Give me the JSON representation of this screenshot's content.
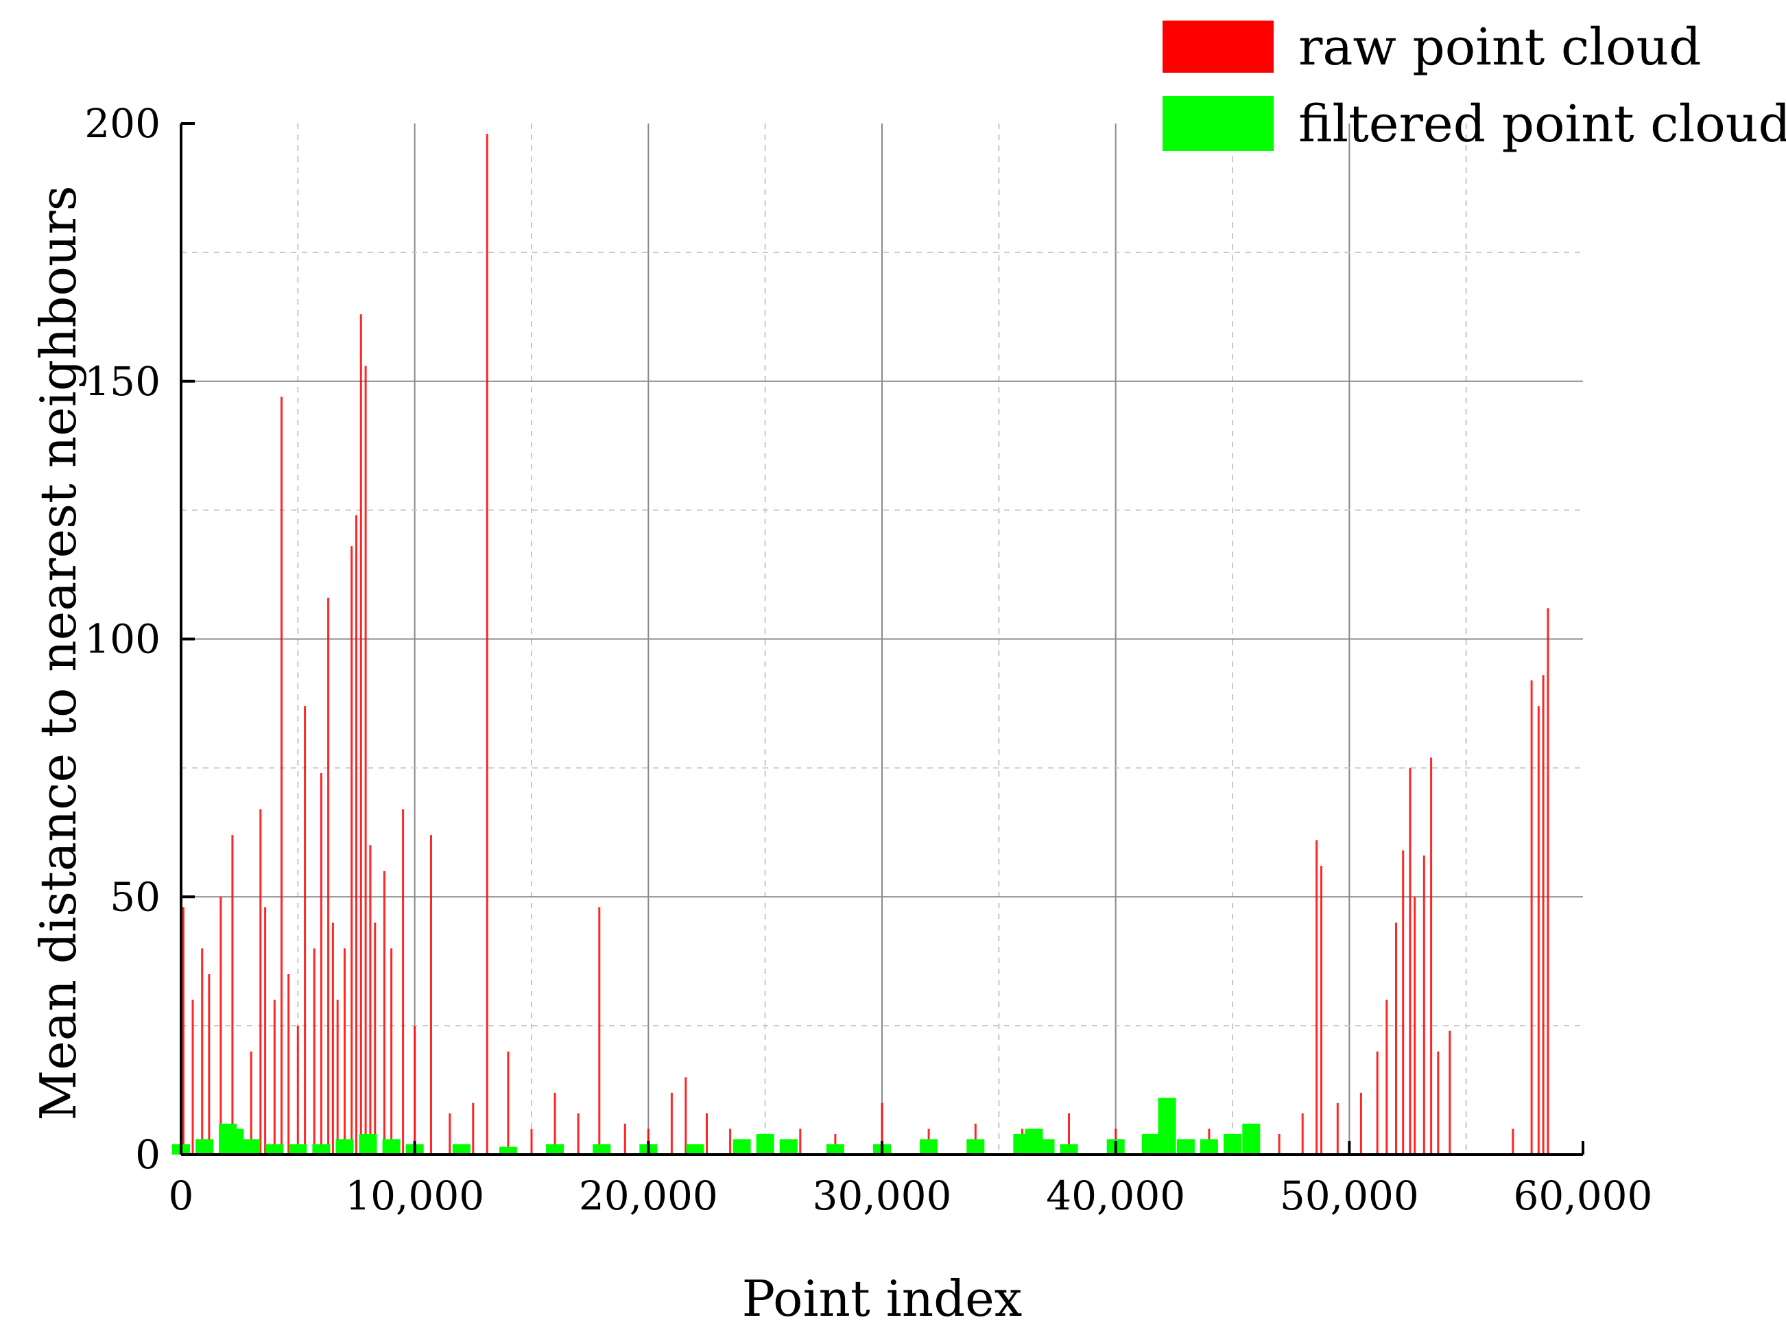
{
  "chart_data": {
    "type": "bar",
    "xlabel": "Point index",
    "ylabel": "Mean distance to nearest neighbours",
    "xlim": [
      0,
      60000
    ],
    "ylim": [
      0,
      200
    ],
    "x_ticks": [
      0,
      10000,
      20000,
      30000,
      40000,
      50000,
      60000
    ],
    "x_tick_labels": [
      "0",
      "10,000",
      "20,000",
      "30,000",
      "40,000",
      "50,000",
      "60,000"
    ],
    "y_ticks": [
      0,
      50,
      100,
      150,
      200
    ],
    "y_tick_labels": [
      "0",
      "50",
      "100",
      "150",
      "200"
    ],
    "grid": true,
    "legend_position": "top-right",
    "series": [
      {
        "name": "raw point cloud",
        "color": "#ff0000",
        "x": [
          100,
          500,
          900,
          1200,
          1700,
          2200,
          3000,
          3400,
          3600,
          4000,
          4300,
          4600,
          5000,
          5300,
          5700,
          6000,
          6300,
          6500,
          6700,
          7000,
          7300,
          7500,
          7700,
          7900,
          8100,
          8300,
          8700,
          9000,
          9500,
          10000,
          10700,
          11500,
          12500,
          13100,
          14000,
          15000,
          16000,
          17000,
          17900,
          19000,
          20000,
          21000,
          21600,
          22500,
          23500,
          25000,
          26500,
          28000,
          30000,
          32000,
          34000,
          36000,
          38000,
          40000,
          42000,
          44000,
          46000,
          47000,
          48000,
          48600,
          48800,
          49500,
          50500,
          51200,
          51600,
          52000,
          52300,
          52600,
          52800,
          53200,
          53500,
          53800,
          54300,
          56000,
          57000,
          57800,
          58100,
          58300,
          58500
        ],
        "y": [
          48,
          30,
          40,
          35,
          50,
          62,
          20,
          67,
          48,
          30,
          147,
          35,
          25,
          87,
          40,
          74,
          108,
          45,
          30,
          40,
          118,
          124,
          163,
          153,
          60,
          45,
          55,
          40,
          67,
          25,
          62,
          8,
          10,
          198,
          20,
          5,
          12,
          8,
          48,
          6,
          5,
          12,
          15,
          8,
          5,
          4,
          5,
          4,
          10,
          5,
          6,
          5,
          8,
          5,
          4,
          5,
          3,
          4,
          8,
          61,
          56,
          10,
          12,
          20,
          30,
          45,
          59,
          75,
          50,
          58,
          77,
          20,
          24,
          0,
          5,
          92,
          87,
          93,
          106
        ]
      },
      {
        "name": "filtered point cloud",
        "color": "#00ff00",
        "x": [
          0,
          1000,
          2000,
          2300,
          3000,
          4000,
          5000,
          6000,
          7000,
          8000,
          9000,
          10000,
          12000,
          14000,
          16000,
          18000,
          20000,
          22000,
          24000,
          25000,
          26000,
          28000,
          30000,
          32000,
          34000,
          36000,
          36500,
          37000,
          38000,
          40000,
          41500,
          42200,
          43000,
          44000,
          45000,
          45800,
          46000
        ],
        "y": [
          2,
          3,
          6,
          5,
          3,
          2,
          2,
          2,
          3,
          4,
          3,
          2,
          2,
          1.5,
          2,
          2,
          2,
          2,
          3,
          4,
          3,
          2,
          2,
          3,
          3,
          4,
          5,
          3,
          2,
          3,
          4,
          11,
          3,
          3,
          4,
          6,
          0
        ]
      }
    ]
  }
}
